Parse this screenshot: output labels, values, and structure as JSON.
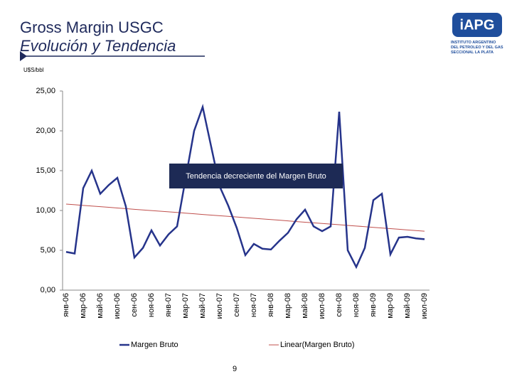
{
  "header": {
    "title": "Gross Margin USGC",
    "subtitle": "Evolución y Tendencia"
  },
  "logo": {
    "mark": "iAPG",
    "lines": [
      "INSTITUTO ARGENTINO",
      "DEL PETROLEO Y DEL GAS",
      "SECCIONAL LA PLATA"
    ]
  },
  "chart_data": {
    "type": "line",
    "y_label": "U$S/bbl",
    "annotation": "Tendencia decreciente del Margen Bruto",
    "categories": [
      "янв-06",
      null,
      "мар-06",
      null,
      "май-06",
      null,
      "июл-06",
      null,
      "сен-06",
      null,
      "ноя-06",
      null,
      "янв-07",
      null,
      "мар-07",
      null,
      "май-07",
      null,
      "июл-07",
      null,
      "сен-07",
      null,
      "ноя-07",
      null,
      "янв-08",
      null,
      "мар-08",
      null,
      "май-08",
      null,
      "июл-08",
      null,
      "сен-08",
      null,
      "ноя-08",
      null,
      "янв-09",
      null,
      "мар-09",
      null,
      "май-09",
      null,
      "июл-09"
    ],
    "series": [
      {
        "name": "Margen Bruto",
        "color": "#26348b",
        "values": [
          4.8,
          4.6,
          12.8,
          15.0,
          12.1,
          13.2,
          14.1,
          10.5,
          4.1,
          5.3,
          7.5,
          5.6,
          7.0,
          8.0,
          14.0,
          20.0,
          23.0,
          18.0,
          13.0,
          10.6,
          7.8,
          4.4,
          5.8,
          5.2,
          5.1,
          6.2,
          7.2,
          8.9,
          10.1,
          8.0,
          7.4,
          8.0,
          22.4,
          5.0,
          2.9,
          5.3,
          11.3,
          12.1,
          4.5,
          6.6,
          6.7,
          6.5,
          6.4
        ]
      },
      {
        "name": "Linear(Margen Bruto)",
        "color": "#c0504d",
        "values": [
          10.8,
          10.72,
          10.64,
          10.56,
          10.48,
          10.4,
          10.31,
          10.23,
          10.15,
          10.07,
          9.99,
          9.91,
          9.83,
          9.75,
          9.67,
          9.59,
          9.5,
          9.42,
          9.34,
          9.26,
          9.18,
          9.1,
          9.02,
          8.94,
          8.86,
          8.78,
          8.69,
          8.61,
          8.53,
          8.45,
          8.37,
          8.29,
          8.21,
          8.13,
          8.05,
          7.97,
          7.88,
          7.8,
          7.72,
          7.64,
          7.56,
          7.48,
          7.4
        ]
      }
    ],
    "ylim": [
      0,
      25
    ],
    "yticks": [
      {
        "value": 0,
        "label": "0,00"
      },
      {
        "value": 5,
        "label": "5,00"
      },
      {
        "value": 10,
        "label": "10,00"
      },
      {
        "value": 15,
        "label": "15,00"
      },
      {
        "value": 20,
        "label": "20,00"
      },
      {
        "value": 25,
        "label": "25,00"
      }
    ],
    "grid": false
  },
  "page_number": "9"
}
